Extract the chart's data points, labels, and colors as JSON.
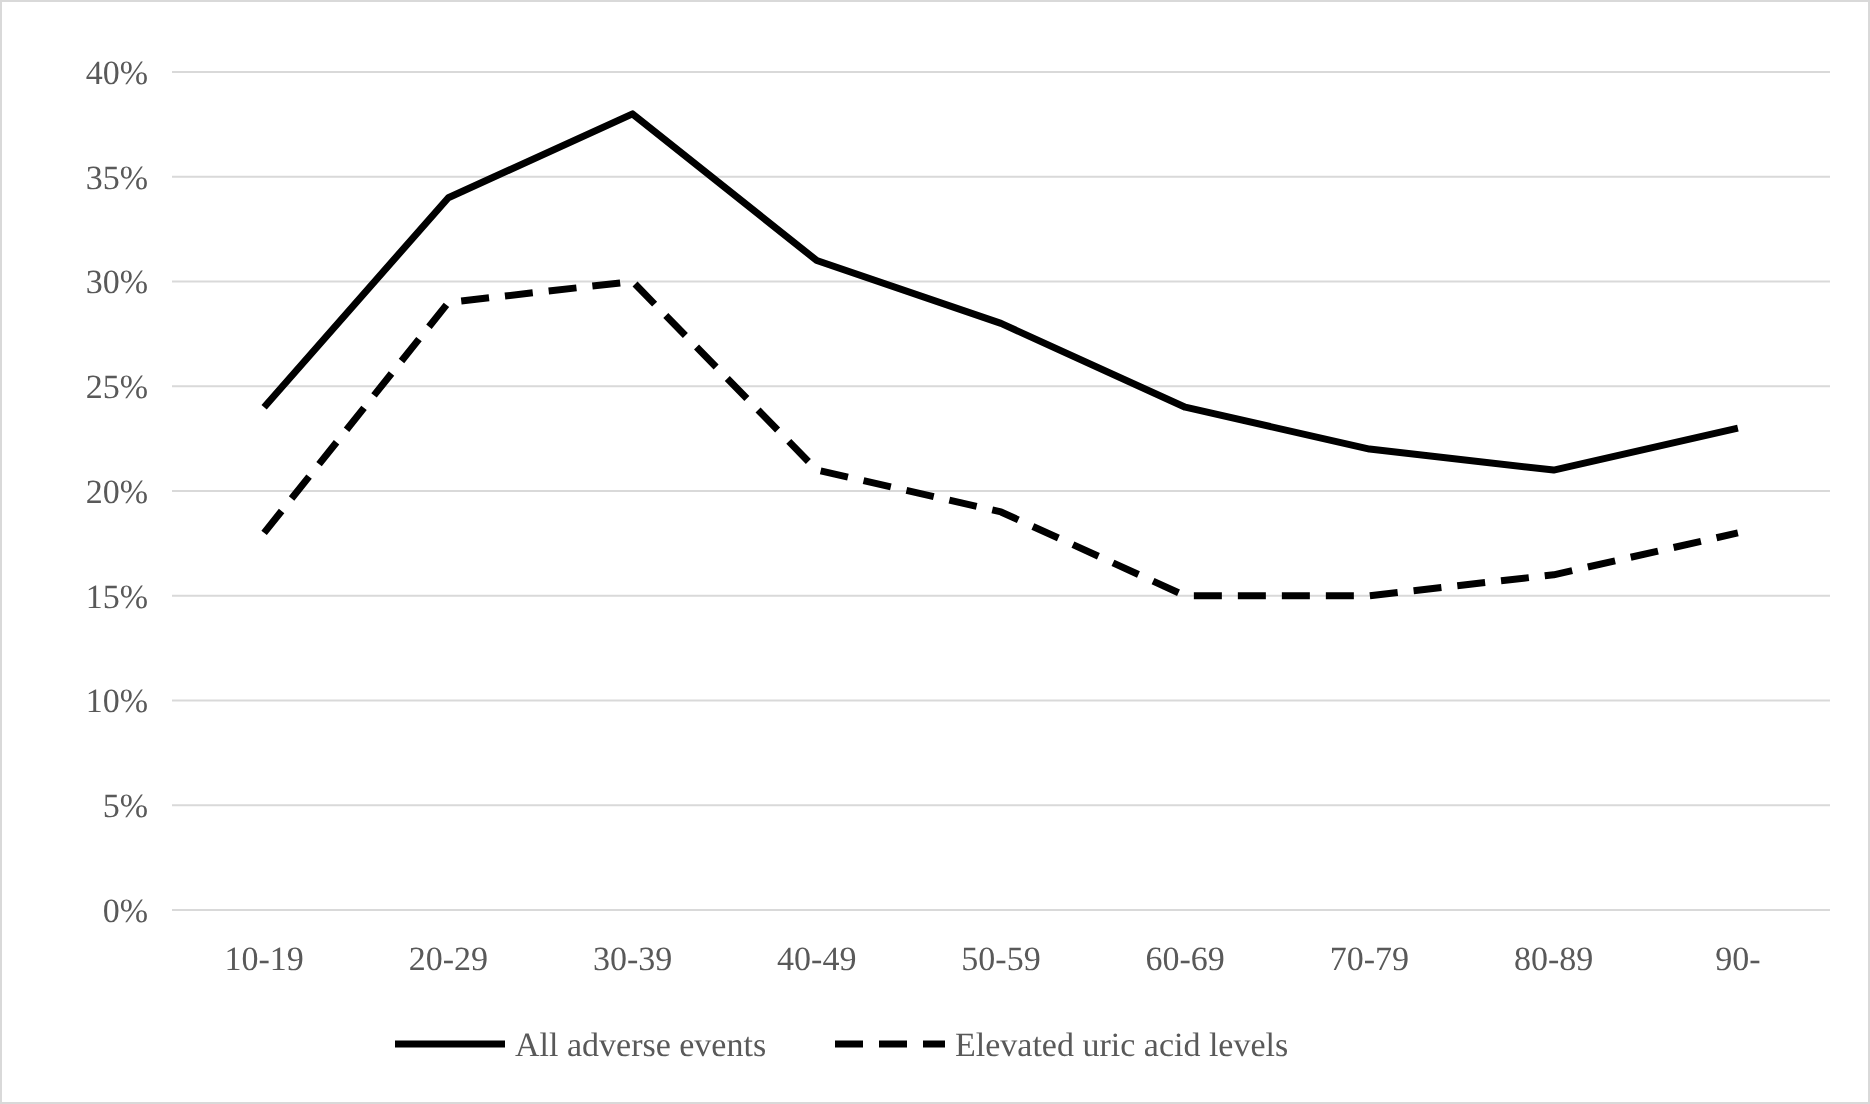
{
  "chart_data": {
    "type": "line",
    "categories": [
      "10-19",
      "20-29",
      "30-39",
      "40-49",
      "50-59",
      "60-69",
      "70-79",
      "80-89",
      "90-"
    ],
    "series": [
      {
        "name": "All adverse events",
        "color": "#000000",
        "line_style": "solid",
        "values": [
          24,
          34,
          38,
          31,
          28,
          24,
          22,
          21,
          23
        ]
      },
      {
        "name": "Elevated uric acid levels",
        "color": "#000000",
        "line_style": "dashed",
        "values": [
          18,
          29,
          30,
          21,
          19,
          15,
          15,
          16,
          18
        ]
      }
    ],
    "ylim": [
      0,
      40
    ],
    "yticks": [
      {
        "value": 0,
        "label": "0%"
      },
      {
        "value": 5,
        "label": "5%"
      },
      {
        "value": 10,
        "label": "10%"
      },
      {
        "value": 15,
        "label": "15%"
      },
      {
        "value": 20,
        "label": "20%"
      },
      {
        "value": 25,
        "label": "25%"
      },
      {
        "value": 30,
        "label": "30%"
      },
      {
        "value": 35,
        "label": "35%"
      },
      {
        "value": 40,
        "label": "40%"
      }
    ],
    "grid": "y",
    "legend": "bottom",
    "marker": "none"
  }
}
